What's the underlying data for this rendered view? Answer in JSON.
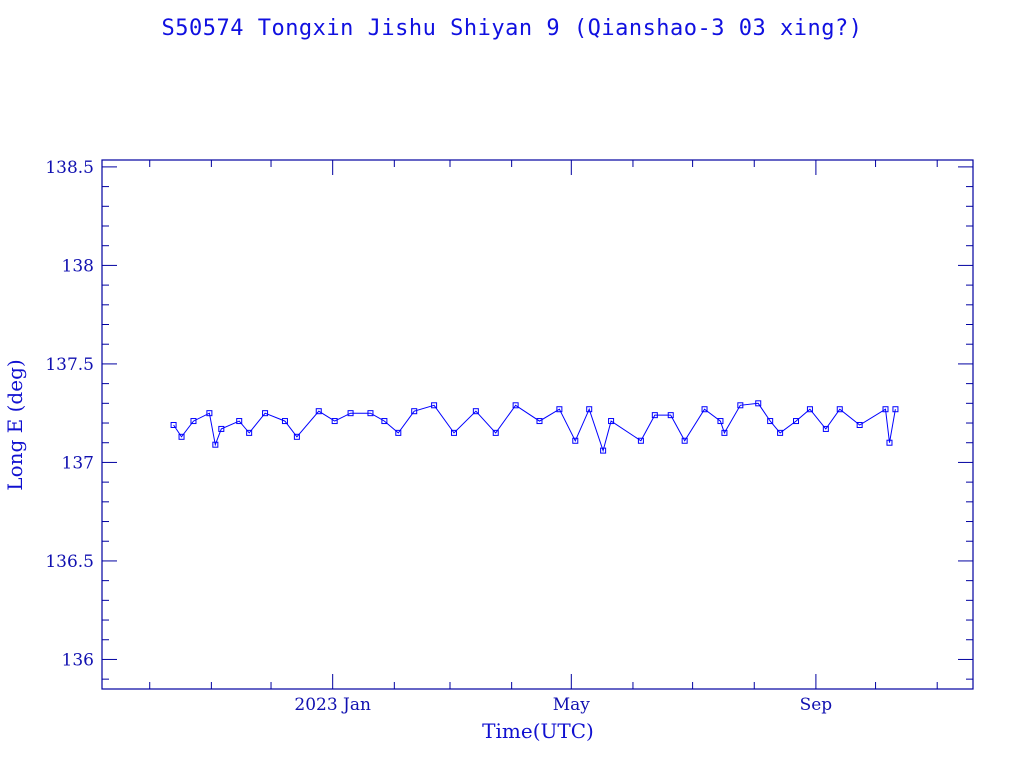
{
  "chart_data": {
    "type": "scatter",
    "title": "S50574 Tongxin Jishu Shiyan 9  (Qianshao-3 03 xing?)",
    "xlabel": "Time(UTC)",
    "ylabel": "Long E (deg)",
    "x_unit": "days since 2023-01-01",
    "xlim": [
      -116,
      322
    ],
    "ylim": [
      135.85,
      138.535
    ],
    "x_major_ticks": [
      {
        "value": 0,
        "label": "2023 Jan"
      },
      {
        "value": 120,
        "label": "May"
      },
      {
        "value": 243,
        "label": "Sep"
      }
    ],
    "x_minor_ticks": [
      -92,
      -61,
      -31,
      31,
      59,
      90,
      151,
      181,
      212,
      273,
      304
    ],
    "y_major_ticks": [
      {
        "value": 136,
        "label": "136"
      },
      {
        "value": 136.5,
        "label": "136.5"
      },
      {
        "value": 137,
        "label": "137"
      },
      {
        "value": 137.5,
        "label": "137.5"
      },
      {
        "value": 138,
        "label": "138"
      },
      {
        "value": 138.5,
        "label": "138.5"
      }
    ],
    "y_minor_step": 0.1,
    "grid": false,
    "marker": "square",
    "series": [
      {
        "name": "Long E",
        "color": "#0000ff",
        "x": [
          -80,
          -76,
          -70,
          -62,
          -59,
          -56,
          -47,
          -42,
          -34,
          -24,
          -18,
          -7,
          1,
          9,
          19,
          26,
          33,
          41,
          51,
          61,
          72,
          82,
          92,
          104,
          114,
          122,
          129,
          136,
          140,
          155,
          162,
          170,
          177,
          187,
          195,
          197,
          205,
          214,
          220,
          225,
          233,
          240,
          248,
          255,
          265,
          278,
          280,
          283
        ],
        "y": [
          137.19,
          137.13,
          137.21,
          137.25,
          137.09,
          137.17,
          137.21,
          137.15,
          137.25,
          137.21,
          137.13,
          137.26,
          137.21,
          137.25,
          137.25,
          137.21,
          137.15,
          137.26,
          137.29,
          137.15,
          137.26,
          137.15,
          137.29,
          137.21,
          137.27,
          137.11,
          137.27,
          137.06,
          137.21,
          137.11,
          137.24,
          137.24,
          137.11,
          137.27,
          137.21,
          137.15,
          137.29,
          137.3,
          137.21,
          137.15,
          137.21,
          137.27,
          137.17,
          137.27,
          137.19,
          137.27,
          137.1,
          137.27
        ]
      }
    ]
  }
}
